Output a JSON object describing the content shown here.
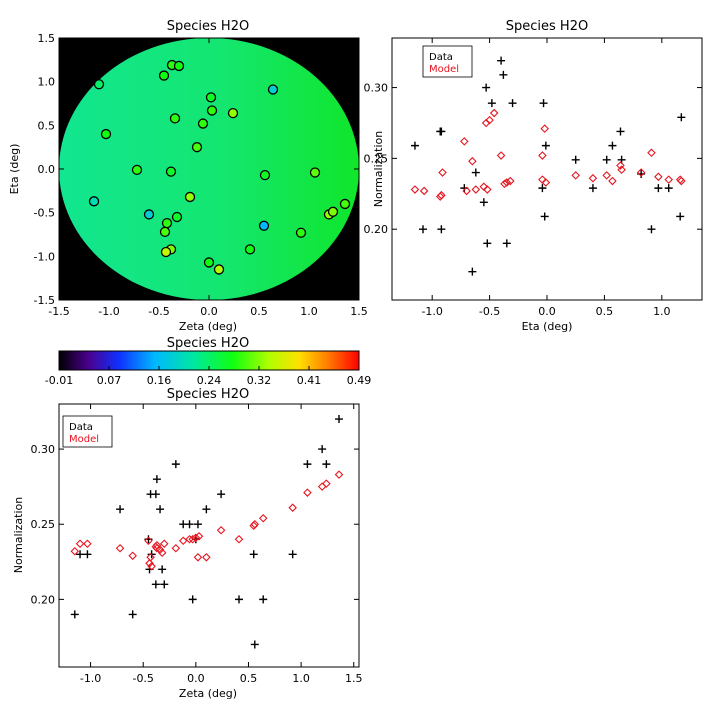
{
  "chart_data": [
    {
      "id": "map",
      "type": "scatter",
      "title": "Species H2O",
      "xlabel": "Zeta (deg)",
      "ylabel": "Eta (deg)",
      "xlim": [
        -1.5,
        1.5
      ],
      "ylim": [
        -1.5,
        1.5
      ],
      "xticks": [
        "-1.5",
        "-1.0",
        "-0.5",
        "0.0",
        "0.5",
        "1.0",
        "1.5"
      ],
      "yticks": [
        "-1.5",
        "-1.0",
        "-0.5",
        "0.0",
        "0.5",
        "1.0",
        "1.5"
      ],
      "background": "#000000",
      "disc_color": "#14e67a",
      "points": [
        {
          "x": -1.1,
          "y": 0.97,
          "v": 0.24
        },
        {
          "x": -1.03,
          "y": 0.4,
          "v": 0.28
        },
        {
          "x": -0.72,
          "y": -0.01,
          "v": 0.29
        },
        {
          "x": -1.15,
          "y": -0.37,
          "v": 0.2
        },
        {
          "x": -0.6,
          "y": -0.52,
          "v": 0.18
        },
        {
          "x": -0.45,
          "y": 1.07,
          "v": 0.28
        },
        {
          "x": -0.37,
          "y": 1.19,
          "v": 0.29
        },
        {
          "x": -0.3,
          "y": 1.18,
          "v": 0.28
        },
        {
          "x": -0.34,
          "y": 0.58,
          "v": 0.29
        },
        {
          "x": -0.38,
          "y": -0.03,
          "v": 0.27
        },
        {
          "x": -0.19,
          "y": -0.32,
          "v": 0.33
        },
        {
          "x": -0.32,
          "y": -0.55,
          "v": 0.27
        },
        {
          "x": -0.42,
          "y": -0.62,
          "v": 0.29
        },
        {
          "x": -0.44,
          "y": -0.72,
          "v": 0.3
        },
        {
          "x": -0.38,
          "y": -0.92,
          "v": 0.32
        },
        {
          "x": -0.43,
          "y": -0.95,
          "v": 0.35
        },
        {
          "x": -0.12,
          "y": 0.25,
          "v": 0.3
        },
        {
          "x": -0.06,
          "y": 0.52,
          "v": 0.29
        },
        {
          "x": 0.02,
          "y": 0.82,
          "v": 0.27
        },
        {
          "x": 0.03,
          "y": 0.67,
          "v": 0.29
        },
        {
          "x": 0.24,
          "y": 0.64,
          "v": 0.33
        },
        {
          "x": 0.64,
          "y": 0.91,
          "v": 0.18
        },
        {
          "x": 0.56,
          "y": -0.07,
          "v": 0.27
        },
        {
          "x": 1.06,
          "y": -0.04,
          "v": 0.31
        },
        {
          "x": 0.55,
          "y": -0.65,
          "v": 0.15
        },
        {
          "x": 0.41,
          "y": -0.92,
          "v": 0.28
        },
        {
          "x": 0.0,
          "y": -1.07,
          "v": 0.28
        },
        {
          "x": 0.1,
          "y": -1.15,
          "v": 0.34
        },
        {
          "x": 0.92,
          "y": -0.73,
          "v": 0.29
        },
        {
          "x": 1.2,
          "y": -0.52,
          "v": 0.33
        },
        {
          "x": 1.24,
          "y": -0.49,
          "v": 0.32
        },
        {
          "x": 1.36,
          "y": -0.4,
          "v": 0.3
        }
      ]
    },
    {
      "id": "colorbar",
      "type": "colorbar",
      "title": "Species H2O",
      "ticks": [
        "-0.01",
        "0.07",
        "0.16",
        "0.24",
        "0.32",
        "0.41",
        "0.49"
      ],
      "range": [
        -0.01,
        0.49
      ]
    },
    {
      "id": "eta_plot",
      "type": "scatter",
      "title": "Species H2O",
      "xlabel": "Eta (deg)",
      "ylabel": "Normalization",
      "xlim": [
        -1.35,
        1.35
      ],
      "ylim": [
        0.15,
        0.335
      ],
      "xticks": [
        -1.0,
        -0.5,
        0.0,
        0.5,
        1.0
      ],
      "xtick_labels": [
        "-1.0",
        "-0.5",
        "0.0",
        "0.5",
        "1.0"
      ],
      "yticks": [
        0.2,
        0.25,
        0.3
      ],
      "ytick_labels": [
        "0.20",
        "0.25",
        "0.30"
      ],
      "legend": {
        "position": "top-left",
        "entries": [
          "Data",
          "Model"
        ]
      },
      "series": [
        {
          "name": "Data",
          "marker": "plus",
          "color": "#000000",
          "x": [
            -1.15,
            -1.08,
            -0.93,
            -0.92,
            -0.92,
            -0.72,
            -0.65,
            -0.62,
            -0.55,
            -0.53,
            -0.52,
            -0.48,
            -0.4,
            -0.38,
            -0.35,
            -0.3,
            -0.04,
            -0.03,
            -0.02,
            -0.01,
            0.25,
            0.4,
            0.52,
            0.57,
            0.64,
            0.65,
            0.82,
            0.91,
            0.97,
            1.06,
            1.16,
            1.17
          ],
          "y": [
            0.259,
            0.2,
            0.269,
            0.269,
            0.2,
            0.229,
            0.17,
            0.24,
            0.219,
            0.3,
            0.19,
            0.289,
            0.319,
            0.309,
            0.19,
            0.289,
            0.229,
            0.289,
            0.209,
            0.259,
            0.249,
            0.229,
            0.249,
            0.259,
            0.269,
            0.249,
            0.239,
            0.2,
            0.229,
            0.229,
            0.209,
            0.279
          ]
        },
        {
          "name": "Model",
          "marker": "diamond",
          "color": "#e8141e",
          "x": [
            -1.15,
            -1.07,
            -0.93,
            -0.92,
            -0.91,
            -0.72,
            -0.7,
            -0.65,
            -0.62,
            -0.55,
            -0.53,
            -0.52,
            -0.5,
            -0.46,
            -0.4,
            -0.37,
            -0.35,
            -0.32,
            -0.04,
            -0.04,
            -0.02,
            -0.01,
            0.25,
            0.4,
            0.52,
            0.57,
            0.64,
            0.65,
            0.82,
            0.91,
            0.97,
            1.06,
            1.16,
            1.17
          ],
          "y": [
            0.228,
            0.227,
            0.223,
            0.224,
            0.24,
            0.262,
            0.227,
            0.248,
            0.228,
            0.23,
            0.275,
            0.228,
            0.277,
            0.282,
            0.252,
            0.232,
            0.233,
            0.234,
            0.252,
            0.235,
            0.271,
            0.233,
            0.238,
            0.236,
            0.238,
            0.234,
            0.245,
            0.242,
            0.24,
            0.254,
            0.237,
            0.235,
            0.235,
            0.234
          ]
        }
      ]
    },
    {
      "id": "zeta_plot",
      "type": "scatter",
      "title": "Species H2O",
      "xlabel": "Zeta (deg)",
      "ylabel": "Normalization",
      "xlim": [
        -1.3,
        1.55
      ],
      "ylim": [
        0.155,
        0.33
      ],
      "xticks": [
        -1.0,
        -0.5,
        0.0,
        0.5,
        1.0,
        1.5
      ],
      "xtick_labels": [
        "-1.0",
        "-0.5",
        "0.0",
        "0.5",
        "1.0",
        "1.5"
      ],
      "yticks": [
        0.2,
        0.25,
        0.3
      ],
      "ytick_labels": [
        "0.20",
        "0.25",
        "0.30"
      ],
      "legend": {
        "position": "top-left",
        "entries": [
          "Data",
          "Model"
        ]
      },
      "series": [
        {
          "name": "Data",
          "marker": "plus",
          "color": "#000000",
          "x": [
            -1.15,
            -1.1,
            -1.03,
            -0.72,
            -0.6,
            -0.45,
            -0.44,
            -0.43,
            -0.42,
            -0.38,
            -0.38,
            -0.37,
            -0.34,
            -0.32,
            -0.3,
            -0.19,
            -0.12,
            -0.06,
            -0.03,
            0.0,
            0.02,
            0.1,
            0.24,
            0.41,
            0.55,
            0.56,
            0.64,
            0.92,
            1.06,
            1.2,
            1.24,
            1.36
          ],
          "y": [
            0.19,
            0.23,
            0.23,
            0.26,
            0.19,
            0.24,
            0.22,
            0.27,
            0.23,
            0.27,
            0.21,
            0.28,
            0.26,
            0.22,
            0.21,
            0.29,
            0.25,
            0.25,
            0.2,
            0.24,
            0.25,
            0.26,
            0.27,
            0.2,
            0.23,
            0.17,
            0.2,
            0.23,
            0.29,
            0.3,
            0.29,
            0.32
          ]
        },
        {
          "name": "Model",
          "marker": "diamond",
          "color": "#e8141e",
          "x": [
            -1.15,
            -1.1,
            -1.03,
            -0.72,
            -0.6,
            -0.45,
            -0.44,
            -0.43,
            -0.42,
            -0.38,
            -0.37,
            -0.37,
            -0.34,
            -0.32,
            -0.3,
            -0.19,
            -0.12,
            -0.06,
            -0.03,
            0.0,
            0.02,
            0.03,
            0.1,
            0.24,
            0.41,
            0.55,
            0.56,
            0.64,
            0.92,
            1.06,
            1.2,
            1.24,
            1.36
          ],
          "y": [
            0.232,
            0.237,
            0.237,
            0.234,
            0.229,
            0.239,
            0.224,
            0.228,
            0.222,
            0.235,
            0.236,
            0.234,
            0.233,
            0.231,
            0.237,
            0.234,
            0.239,
            0.24,
            0.24,
            0.241,
            0.228,
            0.242,
            0.228,
            0.246,
            0.24,
            0.249,
            0.25,
            0.254,
            0.261,
            0.271,
            0.275,
            0.277,
            0.283
          ]
        }
      ]
    }
  ]
}
